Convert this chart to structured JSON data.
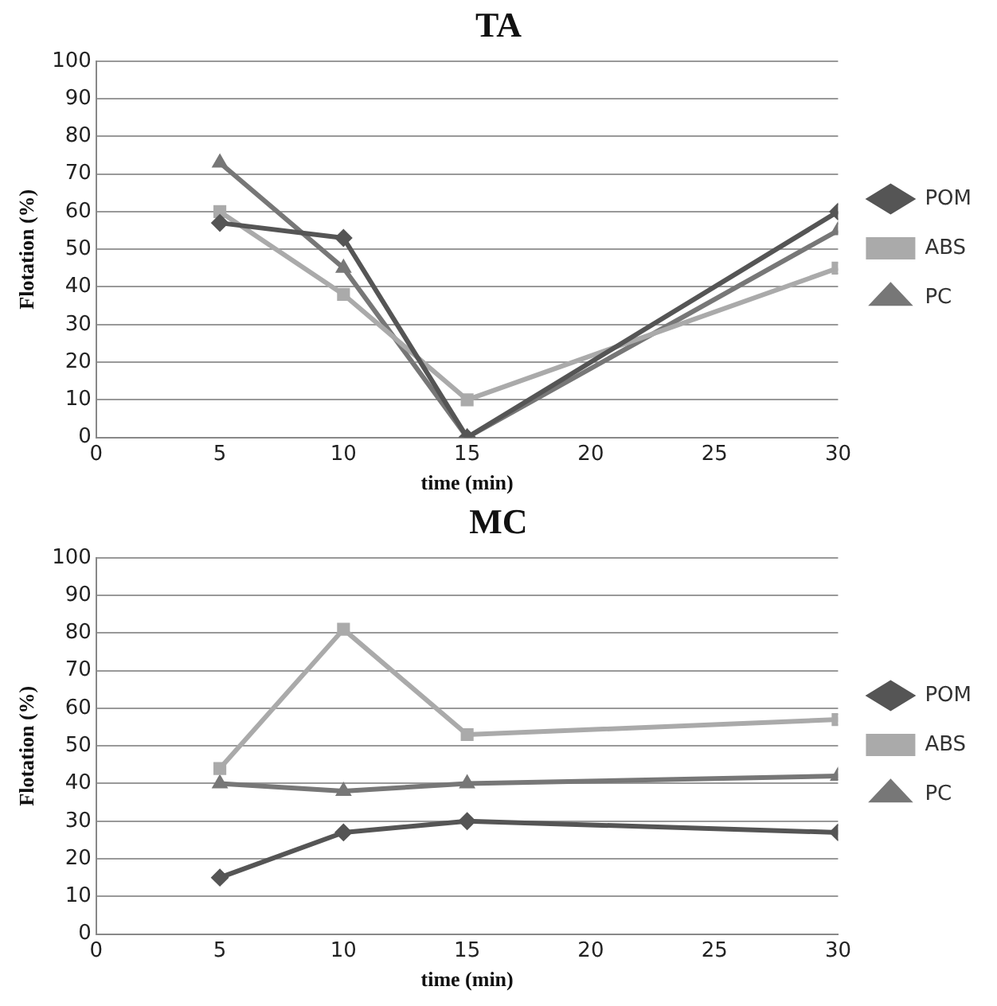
{
  "chart_data": [
    {
      "type": "line",
      "title": "TA",
      "xlabel": "time (min)",
      "ylabel": "Flotation (%)",
      "x": [
        5,
        10,
        15,
        30
      ],
      "xlim": [
        0,
        30
      ],
      "xticks": [
        0,
        5,
        10,
        15,
        20,
        25,
        30
      ],
      "ylim": [
        0,
        100
      ],
      "yticks": [
        0,
        10,
        20,
        30,
        40,
        50,
        60,
        70,
        80,
        90,
        100
      ],
      "grid": "y",
      "legend": "right",
      "line_style": "solid",
      "series": [
        {
          "name": "POM",
          "color": "#555555",
          "marker": "diamond",
          "values": [
            57,
            53,
            0,
            60
          ]
        },
        {
          "name": "ABS",
          "color": "#aaaaaa",
          "marker": "square",
          "values": [
            60,
            38,
            10,
            45
          ]
        },
        {
          "name": "PC",
          "color": "#777777",
          "marker": "triangle",
          "values": [
            73,
            45,
            0,
            55
          ]
        }
      ]
    },
    {
      "type": "line",
      "title": "MC",
      "xlabel": "time (min)",
      "ylabel": "Flotation (%)",
      "x": [
        5,
        10,
        15,
        30
      ],
      "xlim": [
        0,
        30
      ],
      "xticks": [
        0,
        5,
        10,
        15,
        20,
        25,
        30
      ],
      "ylim": [
        0,
        100
      ],
      "yticks": [
        0,
        10,
        20,
        30,
        40,
        50,
        60,
        70,
        80,
        90,
        100
      ],
      "grid": "y",
      "legend": "right",
      "line_style": "solid",
      "series": [
        {
          "name": "POM",
          "color": "#555555",
          "marker": "diamond",
          "values": [
            15,
            27,
            30,
            27
          ]
        },
        {
          "name": "ABS",
          "color": "#aaaaaa",
          "marker": "square",
          "values": [
            44,
            81,
            53,
            57
          ]
        },
        {
          "name": "PC",
          "color": "#777777",
          "marker": "triangle",
          "values": [
            40,
            38,
            40,
            42
          ]
        }
      ]
    }
  ]
}
